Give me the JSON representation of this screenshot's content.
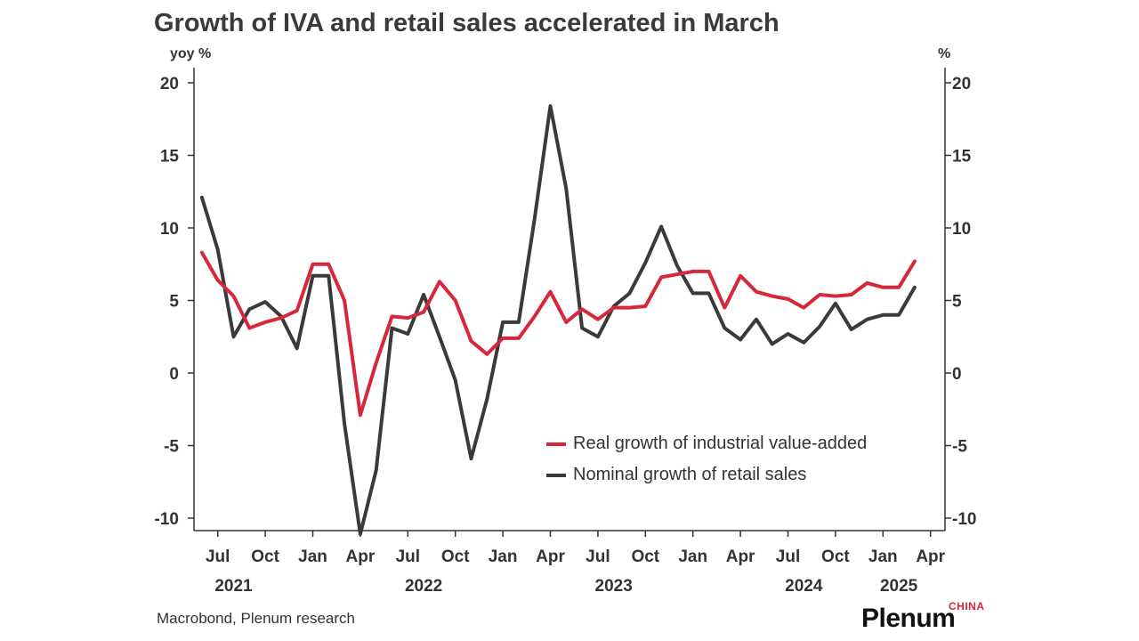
{
  "chart_data": {
    "type": "line",
    "title": "Growth of IVA and retail sales accelerated in March",
    "ylabel_left": "yoy %",
    "ylabel_right": "%",
    "ylim": [
      -11,
      21
    ],
    "yticks": [
      20,
      15,
      10,
      5,
      0,
      -5,
      -10
    ],
    "ytick_labels": [
      "20",
      "15",
      "10",
      "5",
      "0",
      "-5",
      "-10"
    ],
    "x_start": "2021-06",
    "xlim": [
      "2021-06",
      "2025-04"
    ],
    "xtick_months": [
      {
        "label": "Jul",
        "date": "2021-07"
      },
      {
        "label": "Oct",
        "date": "2021-10"
      },
      {
        "label": "Jan",
        "date": "2022-01"
      },
      {
        "label": "Apr",
        "date": "2022-04"
      },
      {
        "label": "Jul",
        "date": "2022-07"
      },
      {
        "label": "Oct",
        "date": "2022-10"
      },
      {
        "label": "Jan",
        "date": "2023-01"
      },
      {
        "label": "Apr",
        "date": "2023-04"
      },
      {
        "label": "Jul",
        "date": "2023-07"
      },
      {
        "label": "Oct",
        "date": "2023-10"
      },
      {
        "label": "Jan",
        "date": "2024-01"
      },
      {
        "label": "Apr",
        "date": "2024-04"
      },
      {
        "label": "Jul",
        "date": "2024-07"
      },
      {
        "label": "Oct",
        "date": "2024-10"
      },
      {
        "label": "Jan",
        "date": "2025-01"
      },
      {
        "label": "Apr",
        "date": "2025-04"
      }
    ],
    "xtick_years": [
      {
        "label": "2021",
        "date": "2021-08"
      },
      {
        "label": "2022",
        "date": "2022-08"
      },
      {
        "label": "2023",
        "date": "2023-08"
      },
      {
        "label": "2024",
        "date": "2024-08"
      },
      {
        "label": "2025",
        "date": "2025-02"
      }
    ],
    "series": [
      {
        "name": "Real growth of industrial value-added",
        "color": "#d6283a",
        "x": [
          "2021-06",
          "2021-07",
          "2021-08",
          "2021-09",
          "2021-10",
          "2021-11",
          "2021-12",
          "2022-01",
          "2022-02",
          "2022-03",
          "2022-04",
          "2022-05",
          "2022-06",
          "2022-07",
          "2022-08",
          "2022-09",
          "2022-10",
          "2022-11",
          "2022-12",
          "2023-01",
          "2023-02",
          "2023-03",
          "2023-04",
          "2023-05",
          "2023-06",
          "2023-07",
          "2023-08",
          "2023-09",
          "2023-10",
          "2023-11",
          "2023-12",
          "2024-01",
          "2024-02",
          "2024-03",
          "2024-04",
          "2024-05",
          "2024-06",
          "2024-07",
          "2024-08",
          "2024-09",
          "2024-10",
          "2024-11",
          "2024-12",
          "2025-01",
          "2025-02",
          "2025-03"
        ],
        "values": [
          8.3,
          6.4,
          5.3,
          3.1,
          3.5,
          3.8,
          4.3,
          7.5,
          7.5,
          5.0,
          -2.9,
          0.7,
          3.9,
          3.8,
          4.2,
          6.3,
          5.0,
          2.2,
          1.3,
          2.4,
          2.4,
          3.9,
          5.6,
          3.5,
          4.4,
          3.7,
          4.5,
          4.5,
          4.6,
          6.6,
          6.8,
          7.0,
          7.0,
          4.5,
          6.7,
          5.6,
          5.3,
          5.1,
          4.5,
          5.4,
          5.3,
          5.4,
          6.2,
          5.9,
          5.9,
          7.7
        ]
      },
      {
        "name": "Nominal growth of retail sales",
        "color": "#3a3a3a",
        "x": [
          "2021-06",
          "2021-07",
          "2021-08",
          "2021-09",
          "2021-10",
          "2021-11",
          "2021-12",
          "2022-01",
          "2022-02",
          "2022-03",
          "2022-04",
          "2022-05",
          "2022-06",
          "2022-07",
          "2022-08",
          "2022-09",
          "2022-10",
          "2022-11",
          "2022-12",
          "2023-01",
          "2023-02",
          "2023-03",
          "2023-04",
          "2023-05",
          "2023-06",
          "2023-07",
          "2023-08",
          "2023-09",
          "2023-10",
          "2023-11",
          "2023-12",
          "2024-01",
          "2024-02",
          "2024-03",
          "2024-04",
          "2024-05",
          "2024-06",
          "2024-07",
          "2024-08",
          "2024-09",
          "2024-10",
          "2024-11",
          "2024-12",
          "2025-01",
          "2025-02",
          "2025-03"
        ],
        "values": [
          12.1,
          8.5,
          2.5,
          4.4,
          4.9,
          3.9,
          1.7,
          6.7,
          6.7,
          -3.5,
          -11.1,
          -6.7,
          3.1,
          2.7,
          5.4,
          2.5,
          -0.5,
          -5.9,
          -1.8,
          3.5,
          3.5,
          10.6,
          18.4,
          12.7,
          3.1,
          2.5,
          4.6,
          5.5,
          7.6,
          10.1,
          7.4,
          5.5,
          5.5,
          3.1,
          2.3,
          3.7,
          2.0,
          2.7,
          2.1,
          3.2,
          4.8,
          3.0,
          3.7,
          4.0,
          4.0,
          5.9
        ]
      }
    ]
  },
  "source": "Macrobond, Plenum research",
  "brand": {
    "name": "Plenum",
    "sub": "CHINA"
  }
}
